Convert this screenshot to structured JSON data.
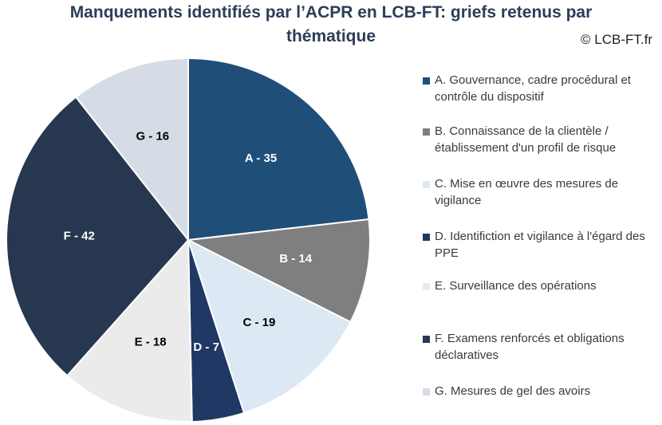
{
  "header": {
    "title_line_1": "Manquements identifiés par l’ACPR en LCB-FT: griefs retenus par",
    "title_line_2": "thématique",
    "copyright": "© LCB-FT.fr"
  },
  "chart_data": {
    "type": "pie",
    "title": "Manquements identifiés par l’ACPR en LCB-FT: griefs retenus par thématique",
    "slices": [
      {
        "key": "A",
        "label": "A - 35",
        "value": 35,
        "color": "#1f4e79",
        "text_color": "#ffffff",
        "legend": "A. Gouvernance, cadre procédural et contrôle du dispositif"
      },
      {
        "key": "B",
        "label": "B - 14",
        "value": 14,
        "color": "#7f7f7f",
        "text_color": "#ffffff",
        "legend": "B. Connaissance de la clientèle / établissement d'un profil de risque"
      },
      {
        "key": "C",
        "label": "C - 19",
        "value": 19,
        "color": "#dde8f5",
        "text_color": "#000000",
        "legend": "C. Mise en œuvre des mesures de vigilance"
      },
      {
        "key": "D",
        "label": "D - 7",
        "value": 7,
        "color": "#203864",
        "text_color": "#ffffff",
        "legend": "D. Identifiction et vigilance à l'égard des PPE"
      },
      {
        "key": "E",
        "label": "E - 18",
        "value": 18,
        "color": "#ebebeb",
        "text_color": "#000000",
        "legend": "E. Surveillance des opérations"
      },
      {
        "key": "F",
        "label": "F - 42",
        "value": 42,
        "color": "#283750",
        "text_color": "#ffffff",
        "legend": "F. Examens renforcés et obligations déclaratives"
      },
      {
        "key": "G",
        "label": "G - 16",
        "value": 16,
        "color": "#d5dce6",
        "text_color": "#000000",
        "legend": "G. Mesures de gel des avoirs"
      }
    ],
    "legend_position": "right",
    "start_angle": "12 o'clock, clockwise"
  }
}
